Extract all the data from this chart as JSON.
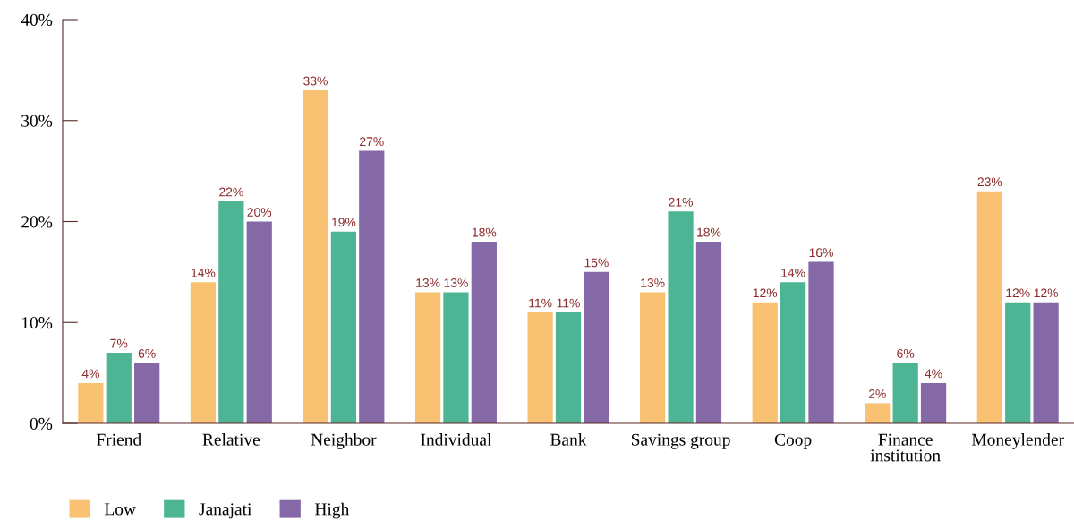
{
  "chart_data": {
    "type": "bar",
    "categories": [
      "Friend",
      "Relative",
      "Neighbor",
      "Individual",
      "Bank",
      "Savings group",
      "Coop",
      "Finance\ninstitution",
      "Moneylender"
    ],
    "series": [
      {
        "name": "Low",
        "color": "#f9c272",
        "values": [
          4,
          14,
          33,
          13,
          11,
          13,
          12,
          2,
          23
        ],
        "value_labels": [
          "4%",
          "14%",
          "33%",
          "13%",
          "11%",
          "13%",
          "12%",
          "2%",
          "23%"
        ]
      },
      {
        "name": "Janajati",
        "color": "#4eb594",
        "values": [
          7,
          22,
          19,
          13,
          11,
          21,
          14,
          6,
          12
        ],
        "value_labels": [
          "7%",
          "22%",
          "19%",
          "13%",
          "11%",
          "21%",
          "14%",
          "6%",
          "12%"
        ]
      },
      {
        "name": "High",
        "color": "#8469a6",
        "values": [
          6,
          20,
          27,
          18,
          15,
          18,
          16,
          4,
          12
        ],
        "value_labels": [
          "6%",
          "20%",
          "27%",
          "18%",
          "15%",
          "18%",
          "16%",
          "4%",
          "12%"
        ]
      }
    ],
    "ylim": [
      0,
      40
    ],
    "yticks": [
      {
        "value": 0,
        "label": "0%"
      },
      {
        "value": 10,
        "label": "10%"
      },
      {
        "value": 20,
        "label": "20%"
      },
      {
        "value": 30,
        "label": "30%"
      },
      {
        "value": 40,
        "label": "40%"
      }
    ],
    "grid": false,
    "legend": "bottom left"
  }
}
